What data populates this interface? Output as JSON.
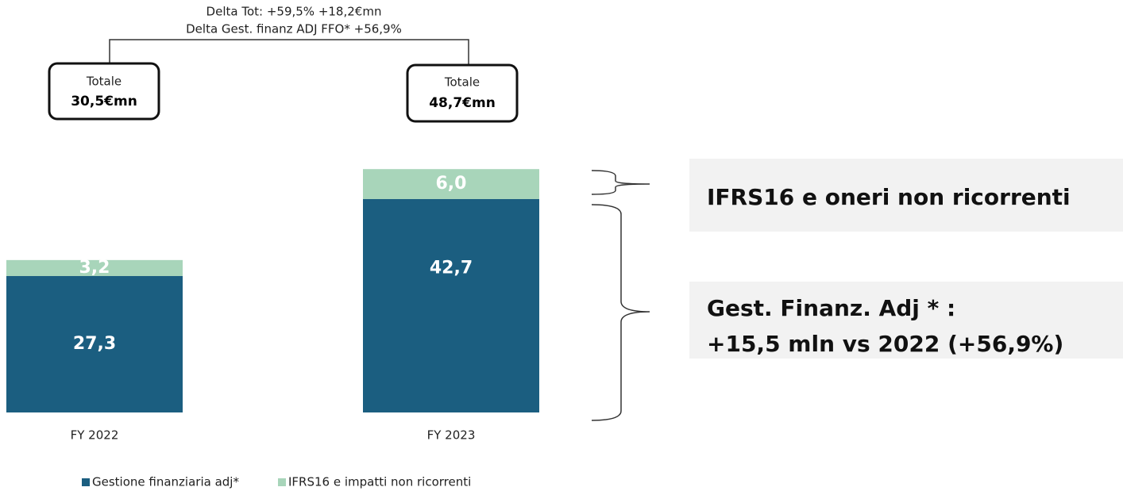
{
  "chart_data": {
    "type": "stacked-bar",
    "categories": [
      "FY 2022",
      "FY 2023"
    ],
    "series": [
      {
        "name": "Gestione finanziaria adj*",
        "color": "#1b5e80",
        "values": [
          27.3,
          42.7
        ],
        "value_labels": [
          "27,3",
          "42,7"
        ]
      },
      {
        "name": "IFRS16 e impatti non ricorrenti",
        "color": "#a8d5ba",
        "values": [
          3.2,
          6.0
        ],
        "value_labels": [
          "3,2",
          "6,0"
        ]
      }
    ],
    "annotations": {
      "delta_tot": "Delta Tot: +59,5% +18,2€mn",
      "delta_gest": "Delta Gest. finanz ADJ FFO* +56,9%",
      "totals": [
        {
          "label": "Totale",
          "value": "30,5€mn"
        },
        {
          "label": "Totale",
          "value": "48,7€mn"
        }
      ],
      "side_top": "IFRS16 e oneri non ricorrenti",
      "side_bottom": [
        "Gest. Finanz. Adj * :",
        "+15,5 mln vs 2022 (+56,9%)"
      ]
    }
  }
}
